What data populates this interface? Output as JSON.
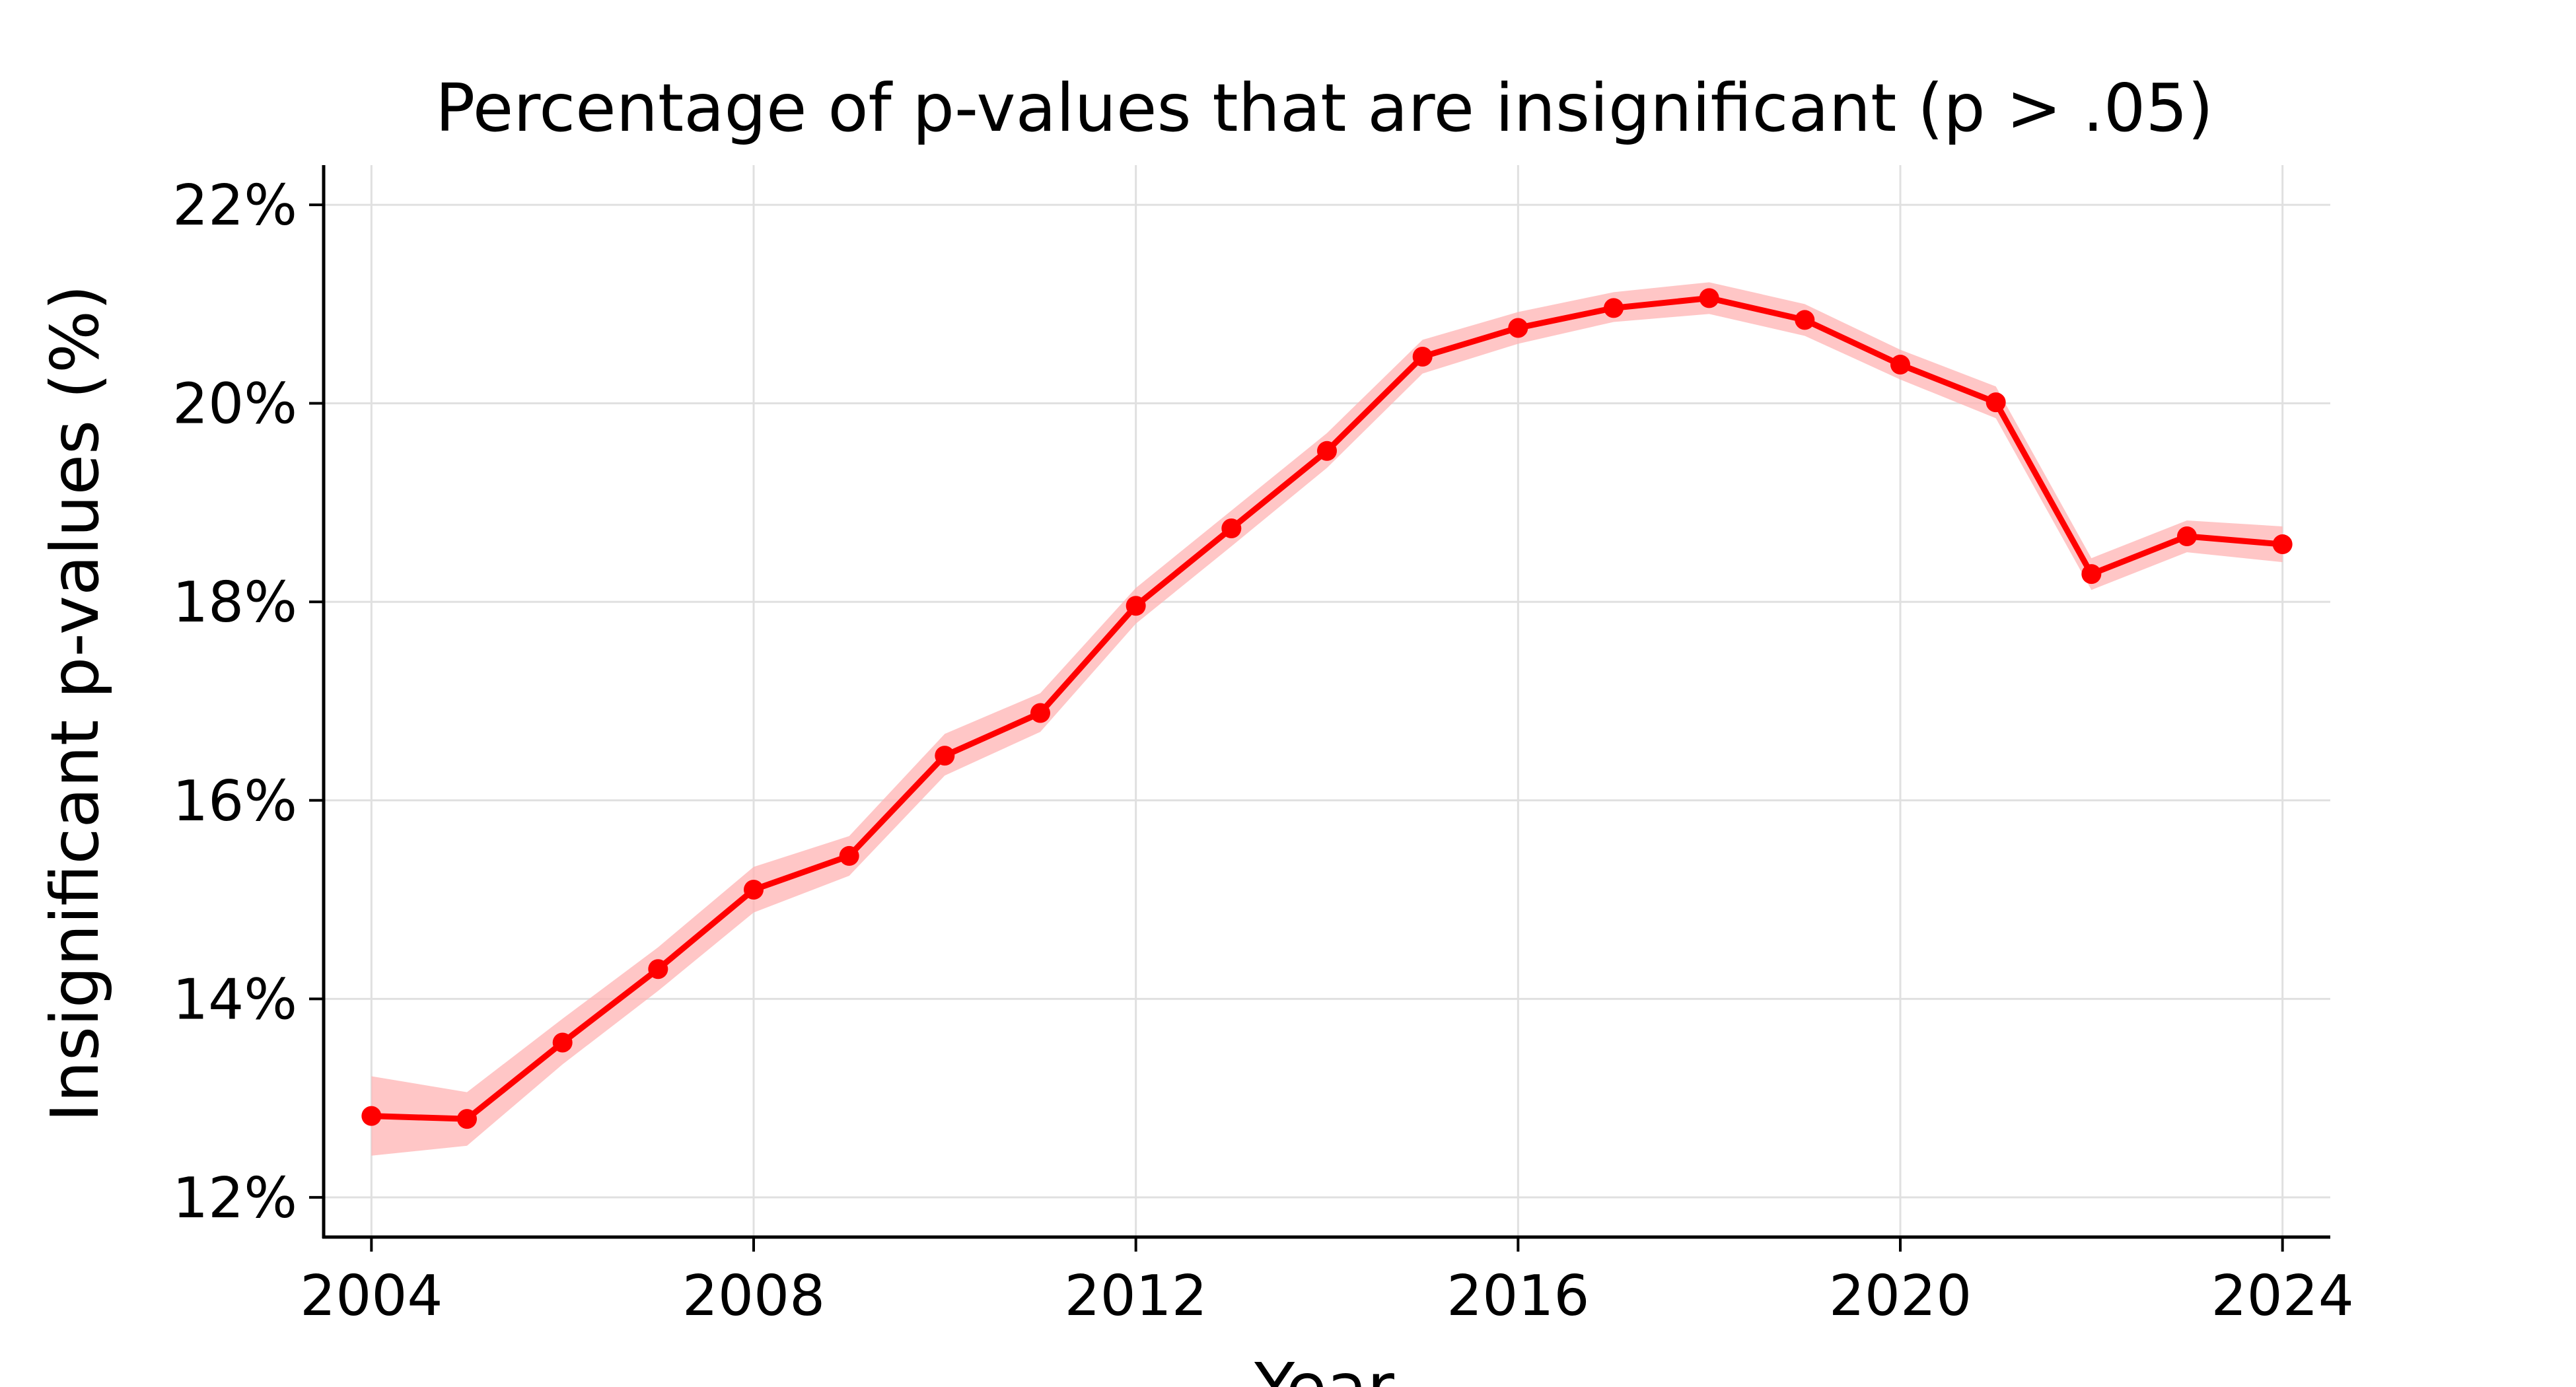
{
  "chart_data": {
    "type": "line",
    "title": "Percentage of p-values that are insignificant (p > .05)",
    "xlabel": "Year",
    "ylabel": "Insignificant p-values (%)",
    "xlim": [
      2003.5,
      2024.5
    ],
    "ylim": [
      11.6,
      22.4
    ],
    "grid": true,
    "x_ticks": [
      2004,
      2008,
      2012,
      2016,
      2020,
      2024
    ],
    "x_tick_labels": [
      "2004",
      "2008",
      "2012",
      "2016",
      "2020",
      "2024"
    ],
    "y_ticks": [
      12,
      14,
      16,
      18,
      20,
      22
    ],
    "y_tick_labels": [
      "12%",
      "14%",
      "16%",
      "18%",
      "20%",
      "22%"
    ],
    "series": [
      {
        "color": "#ff0000",
        "band_color": "#ffb3b3",
        "x": [
          2004,
          2005,
          2006,
          2007,
          2008,
          2009,
          2010,
          2011,
          2012,
          2013,
          2014,
          2015,
          2016,
          2017,
          2018,
          2019,
          2020,
          2021,
          2022,
          2023,
          2024
        ],
        "values": [
          12.82,
          12.79,
          13.56,
          14.3,
          15.1,
          15.44,
          16.45,
          16.88,
          17.96,
          18.74,
          19.52,
          20.47,
          20.76,
          20.96,
          21.06,
          20.84,
          20.39,
          20.01,
          18.28,
          18.66,
          18.58
        ],
        "lower": [
          12.42,
          12.52,
          13.34,
          14.08,
          14.87,
          15.24,
          16.25,
          16.69,
          17.78,
          18.56,
          19.35,
          20.3,
          20.6,
          20.82,
          20.9,
          20.68,
          20.24,
          19.85,
          18.12,
          18.5,
          18.4
        ],
        "upper": [
          13.22,
          13.06,
          13.8,
          14.52,
          15.33,
          15.64,
          16.67,
          17.08,
          18.14,
          18.92,
          19.7,
          20.64,
          20.92,
          21.12,
          21.22,
          21.0,
          20.54,
          20.17,
          18.44,
          18.82,
          18.76
        ]
      }
    ]
  }
}
